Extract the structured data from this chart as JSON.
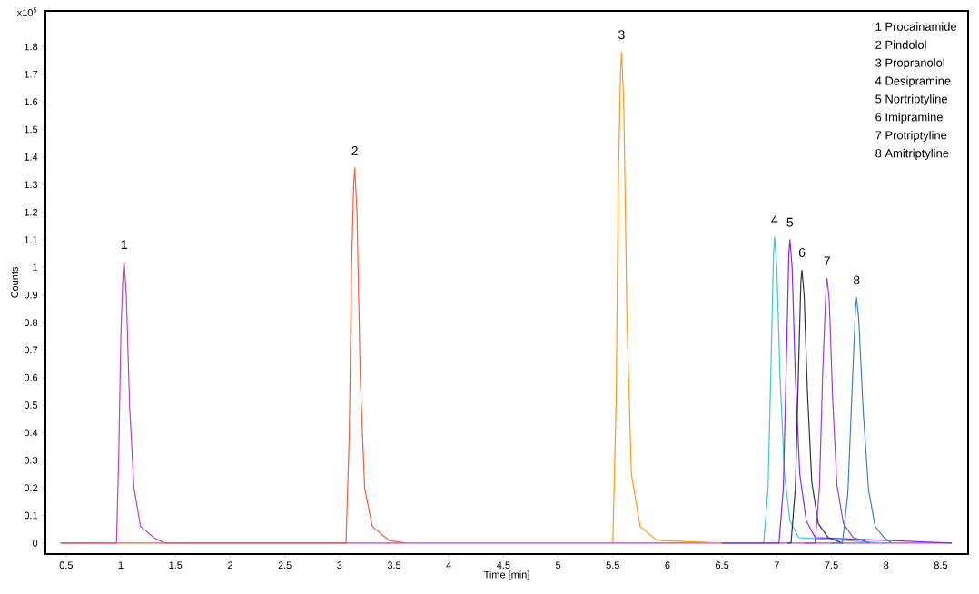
{
  "chart_data": {
    "type": "line",
    "xlabel": "Time [min]",
    "ylabel": "Counts",
    "xlim": [
      0.31,
      8.75
    ],
    "ylim": [
      -0.04,
      1.93
    ],
    "xticks": [
      0.5,
      1,
      1.5,
      2,
      2.5,
      3,
      3.5,
      4,
      4.5,
      5,
      5.5,
      6,
      6.5,
      7,
      7.5,
      8,
      8.5
    ],
    "yticks": [
      0,
      0.1,
      0.2,
      0.3,
      0.4,
      0.5,
      0.6,
      0.7,
      0.8,
      0.9,
      1,
      1.1,
      1.2,
      1.3,
      1.4,
      1.5,
      1.6,
      1.7,
      1.8
    ],
    "grid": false,
    "marker": "none",
    "line_style": "solid",
    "series": [
      {
        "color": "#c040c0",
        "x": [
          0.45,
          0.96,
          0.98,
          1.0,
          1.02,
          1.03,
          1.05,
          1.08,
          1.12,
          1.18,
          1.3,
          1.4,
          8.6
        ],
        "values": [
          0,
          0,
          0.3,
          0.75,
          0.98,
          1.02,
          0.9,
          0.5,
          0.2,
          0.06,
          0.02,
          0,
          0
        ]
      },
      {
        "color": "#f06040",
        "x": [
          0.45,
          3.06,
          3.09,
          3.11,
          3.13,
          3.14,
          3.16,
          3.19,
          3.23,
          3.3,
          3.45,
          3.6
        ],
        "values": [
          0,
          0,
          0.4,
          1.0,
          1.3,
          1.36,
          1.2,
          0.6,
          0.2,
          0.06,
          0.01,
          0
        ]
      },
      {
        "color": "#ff9a20",
        "x": [
          5.5,
          5.53,
          5.55,
          5.57,
          5.58,
          5.6,
          5.63,
          5.67,
          5.75,
          5.9,
          6.5
        ],
        "values": [
          0,
          0.5,
          1.3,
          1.7,
          1.78,
          1.6,
          0.8,
          0.25,
          0.06,
          0.01,
          0
        ]
      },
      {
        "color": "#40c8c8",
        "x": [
          6.5,
          6.88,
          6.92,
          6.95,
          6.97,
          6.98,
          7.0,
          7.03,
          7.07,
          7.12,
          7.2,
          8.0
        ],
        "values": [
          0,
          0,
          0.2,
          0.7,
          1.05,
          1.11,
          1.0,
          0.6,
          0.25,
          0.08,
          0.02,
          0
        ]
      },
      {
        "color": "#8a2be2",
        "x": [
          6.5,
          7.02,
          7.06,
          7.09,
          7.11,
          7.12,
          7.14,
          7.17,
          7.21,
          7.27,
          7.35,
          8.6
        ],
        "values": [
          0,
          0,
          0.2,
          0.7,
          1.05,
          1.1,
          1.0,
          0.6,
          0.25,
          0.08,
          0.02,
          0
        ]
      },
      {
        "color": "#303050",
        "x": [
          7.1,
          7.13,
          7.17,
          7.2,
          7.22,
          7.23,
          7.25,
          7.28,
          7.32,
          7.38,
          7.47,
          7.6
        ],
        "values": [
          0,
          0,
          0.2,
          0.65,
          0.95,
          0.99,
          0.9,
          0.55,
          0.22,
          0.07,
          0.02,
          0
        ]
      },
      {
        "color": "#a040d0",
        "x": [
          7.25,
          7.35,
          7.39,
          7.42,
          7.45,
          7.46,
          7.48,
          7.51,
          7.55,
          7.61,
          7.7,
          7.85
        ],
        "values": [
          0,
          0,
          0.2,
          0.62,
          0.92,
          0.96,
          0.88,
          0.53,
          0.21,
          0.07,
          0.02,
          0
        ]
      },
      {
        "color": "#4080c0",
        "x": [
          7.5,
          7.6,
          7.65,
          7.69,
          7.72,
          7.73,
          7.75,
          7.79,
          7.84,
          7.9,
          7.98,
          8.05
        ],
        "values": [
          0,
          0,
          0.18,
          0.57,
          0.85,
          0.89,
          0.81,
          0.48,
          0.19,
          0.06,
          0.02,
          0
        ]
      }
    ],
    "annotations": [
      "x10$^{5}$",
      {
        "text": "1",
        "x": 1.03,
        "y": 1.02
      },
      {
        "text": "2",
        "x": 3.14,
        "y": 1.36
      },
      {
        "text": "3",
        "x": 5.58,
        "y": 1.78
      },
      {
        "text": "4",
        "x": 6.98,
        "y": 1.11
      },
      {
        "text": "5",
        "x": 7.12,
        "y": 1.1
      },
      {
        "text": "6",
        "x": 7.23,
        "y": 0.99
      },
      {
        "text": "7",
        "x": 7.46,
        "y": 0.96
      },
      {
        "text": "8",
        "x": 7.73,
        "y": 0.89
      },
      "1   Procainamide",
      "2   Pindolol",
      "3   Propranolol",
      "4   Desipramine",
      "5   Nortriptyline",
      "6   Imipramine",
      "7   Protriptyline",
      "8   Amitriptyline"
    ]
  }
}
